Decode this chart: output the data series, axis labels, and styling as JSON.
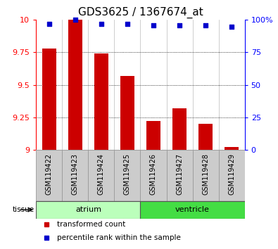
{
  "title": "GDS3625 / 1367674_at",
  "samples": [
    "GSM119422",
    "GSM119423",
    "GSM119424",
    "GSM119425",
    "GSM119426",
    "GSM119427",
    "GSM119428",
    "GSM119429"
  ],
  "transformed_count": [
    9.78,
    10.0,
    9.74,
    9.57,
    9.22,
    9.32,
    9.2,
    9.02
  ],
  "percentile_rank": [
    97,
    100,
    97,
    97,
    96,
    96,
    96,
    95
  ],
  "ylim_left": [
    9.0,
    10.0
  ],
  "ylim_right": [
    0,
    100
  ],
  "yticks_left": [
    9.0,
    9.25,
    9.5,
    9.75,
    10.0
  ],
  "yticks_right": [
    0,
    25,
    50,
    75,
    100
  ],
  "bar_color": "#cc0000",
  "scatter_color": "#0000cc",
  "tissue_groups": [
    {
      "label": "atrium",
      "start": 0,
      "end": 4,
      "color": "#bbffbb"
    },
    {
      "label": "ventricle",
      "start": 4,
      "end": 8,
      "color": "#44dd44"
    }
  ],
  "tissue_label": "tissue",
  "legend_items": [
    {
      "label": "transformed count",
      "color": "#cc0000"
    },
    {
      "label": "percentile rank within the sample",
      "color": "#0000cc"
    }
  ],
  "title_fontsize": 11,
  "tick_fontsize": 8,
  "label_fontsize": 7,
  "bar_width": 0.55,
  "background_color": "#ffffff",
  "sample_bg_color": "#cccccc",
  "sample_sep_color": "#999999"
}
